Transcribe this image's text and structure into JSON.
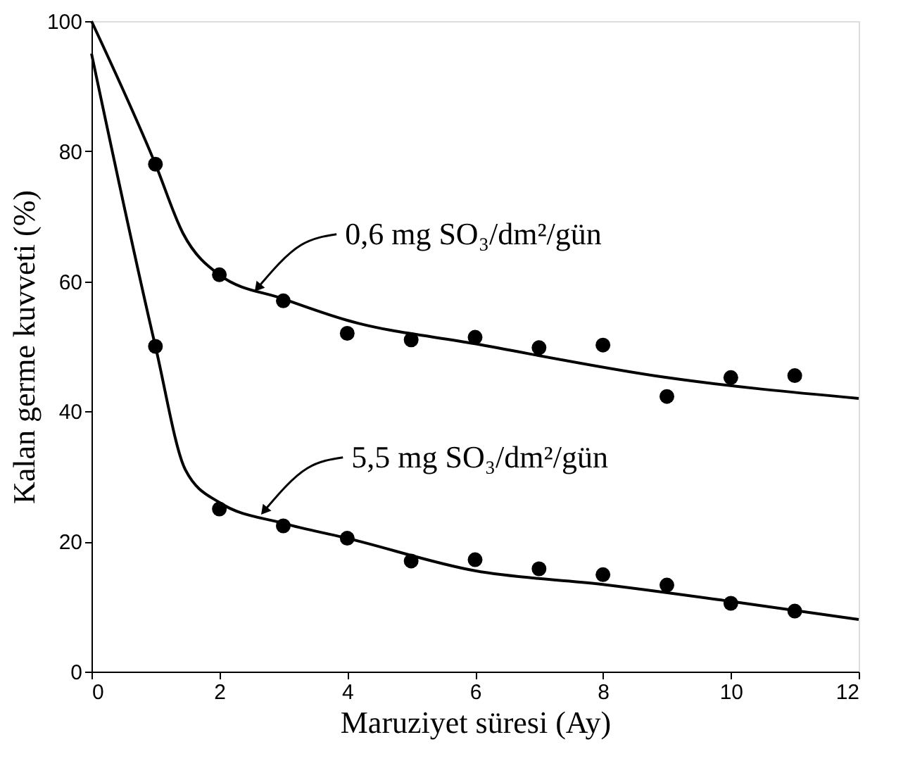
{
  "chart_data": {
    "type": "scatter",
    "xlabel": "Maruziyet süresi (Ay)",
    "ylabel": "Kalan germe kuvveti (%)",
    "xlim": [
      0,
      12
    ],
    "xticks": [
      0,
      2,
      4,
      6,
      8,
      10,
      12
    ],
    "ylim": [
      0,
      100
    ],
    "yticks": [
      0,
      20,
      40,
      60,
      80,
      100
    ],
    "grid": false,
    "marker": "circle",
    "series": [
      {
        "color": "#000000",
        "x": [
          1,
          2,
          3,
          4,
          5,
          6,
          7,
          8,
          9,
          10,
          11
        ],
        "values": [
          78,
          61,
          57,
          52,
          51,
          51.4,
          49.8,
          50.2,
          42.3,
          45.2,
          45.5
        ]
      },
      {
        "color": "#000000",
        "x": [
          1,
          2,
          3,
          4,
          5,
          6,
          7,
          8,
          9,
          10,
          11
        ],
        "values": [
          50,
          25,
          22.4,
          20.5,
          17,
          17.2,
          15.8,
          14.9,
          13.3,
          10.5,
          9.3
        ]
      },
      {
        "type": "line",
        "color": "#000000",
        "marker": "none",
        "x": [
          0,
          1,
          1.43,
          2,
          3,
          4,
          6,
          9,
          12
        ],
        "values": [
          100,
          78,
          67.4,
          61,
          57.3,
          54,
          50.4,
          45.2,
          42
        ]
      },
      {
        "type": "line",
        "color": "#000000",
        "marker": "none",
        "x": [
          0,
          1,
          1.47,
          2,
          3,
          4,
          6,
          8,
          10,
          12
        ],
        "values": [
          95,
          50,
          31,
          26,
          22.8,
          20.5,
          15.5,
          13.4,
          10.8,
          8
        ]
      }
    ],
    "annotations": [
      {
        "text": "0,6 mg SO₃/dm²/gün",
        "x": 2.6,
        "y": 59
      },
      {
        "text": "5,5 mg SO₃/dm²/gün",
        "x": 2.7,
        "y": 24.7
      }
    ]
  }
}
